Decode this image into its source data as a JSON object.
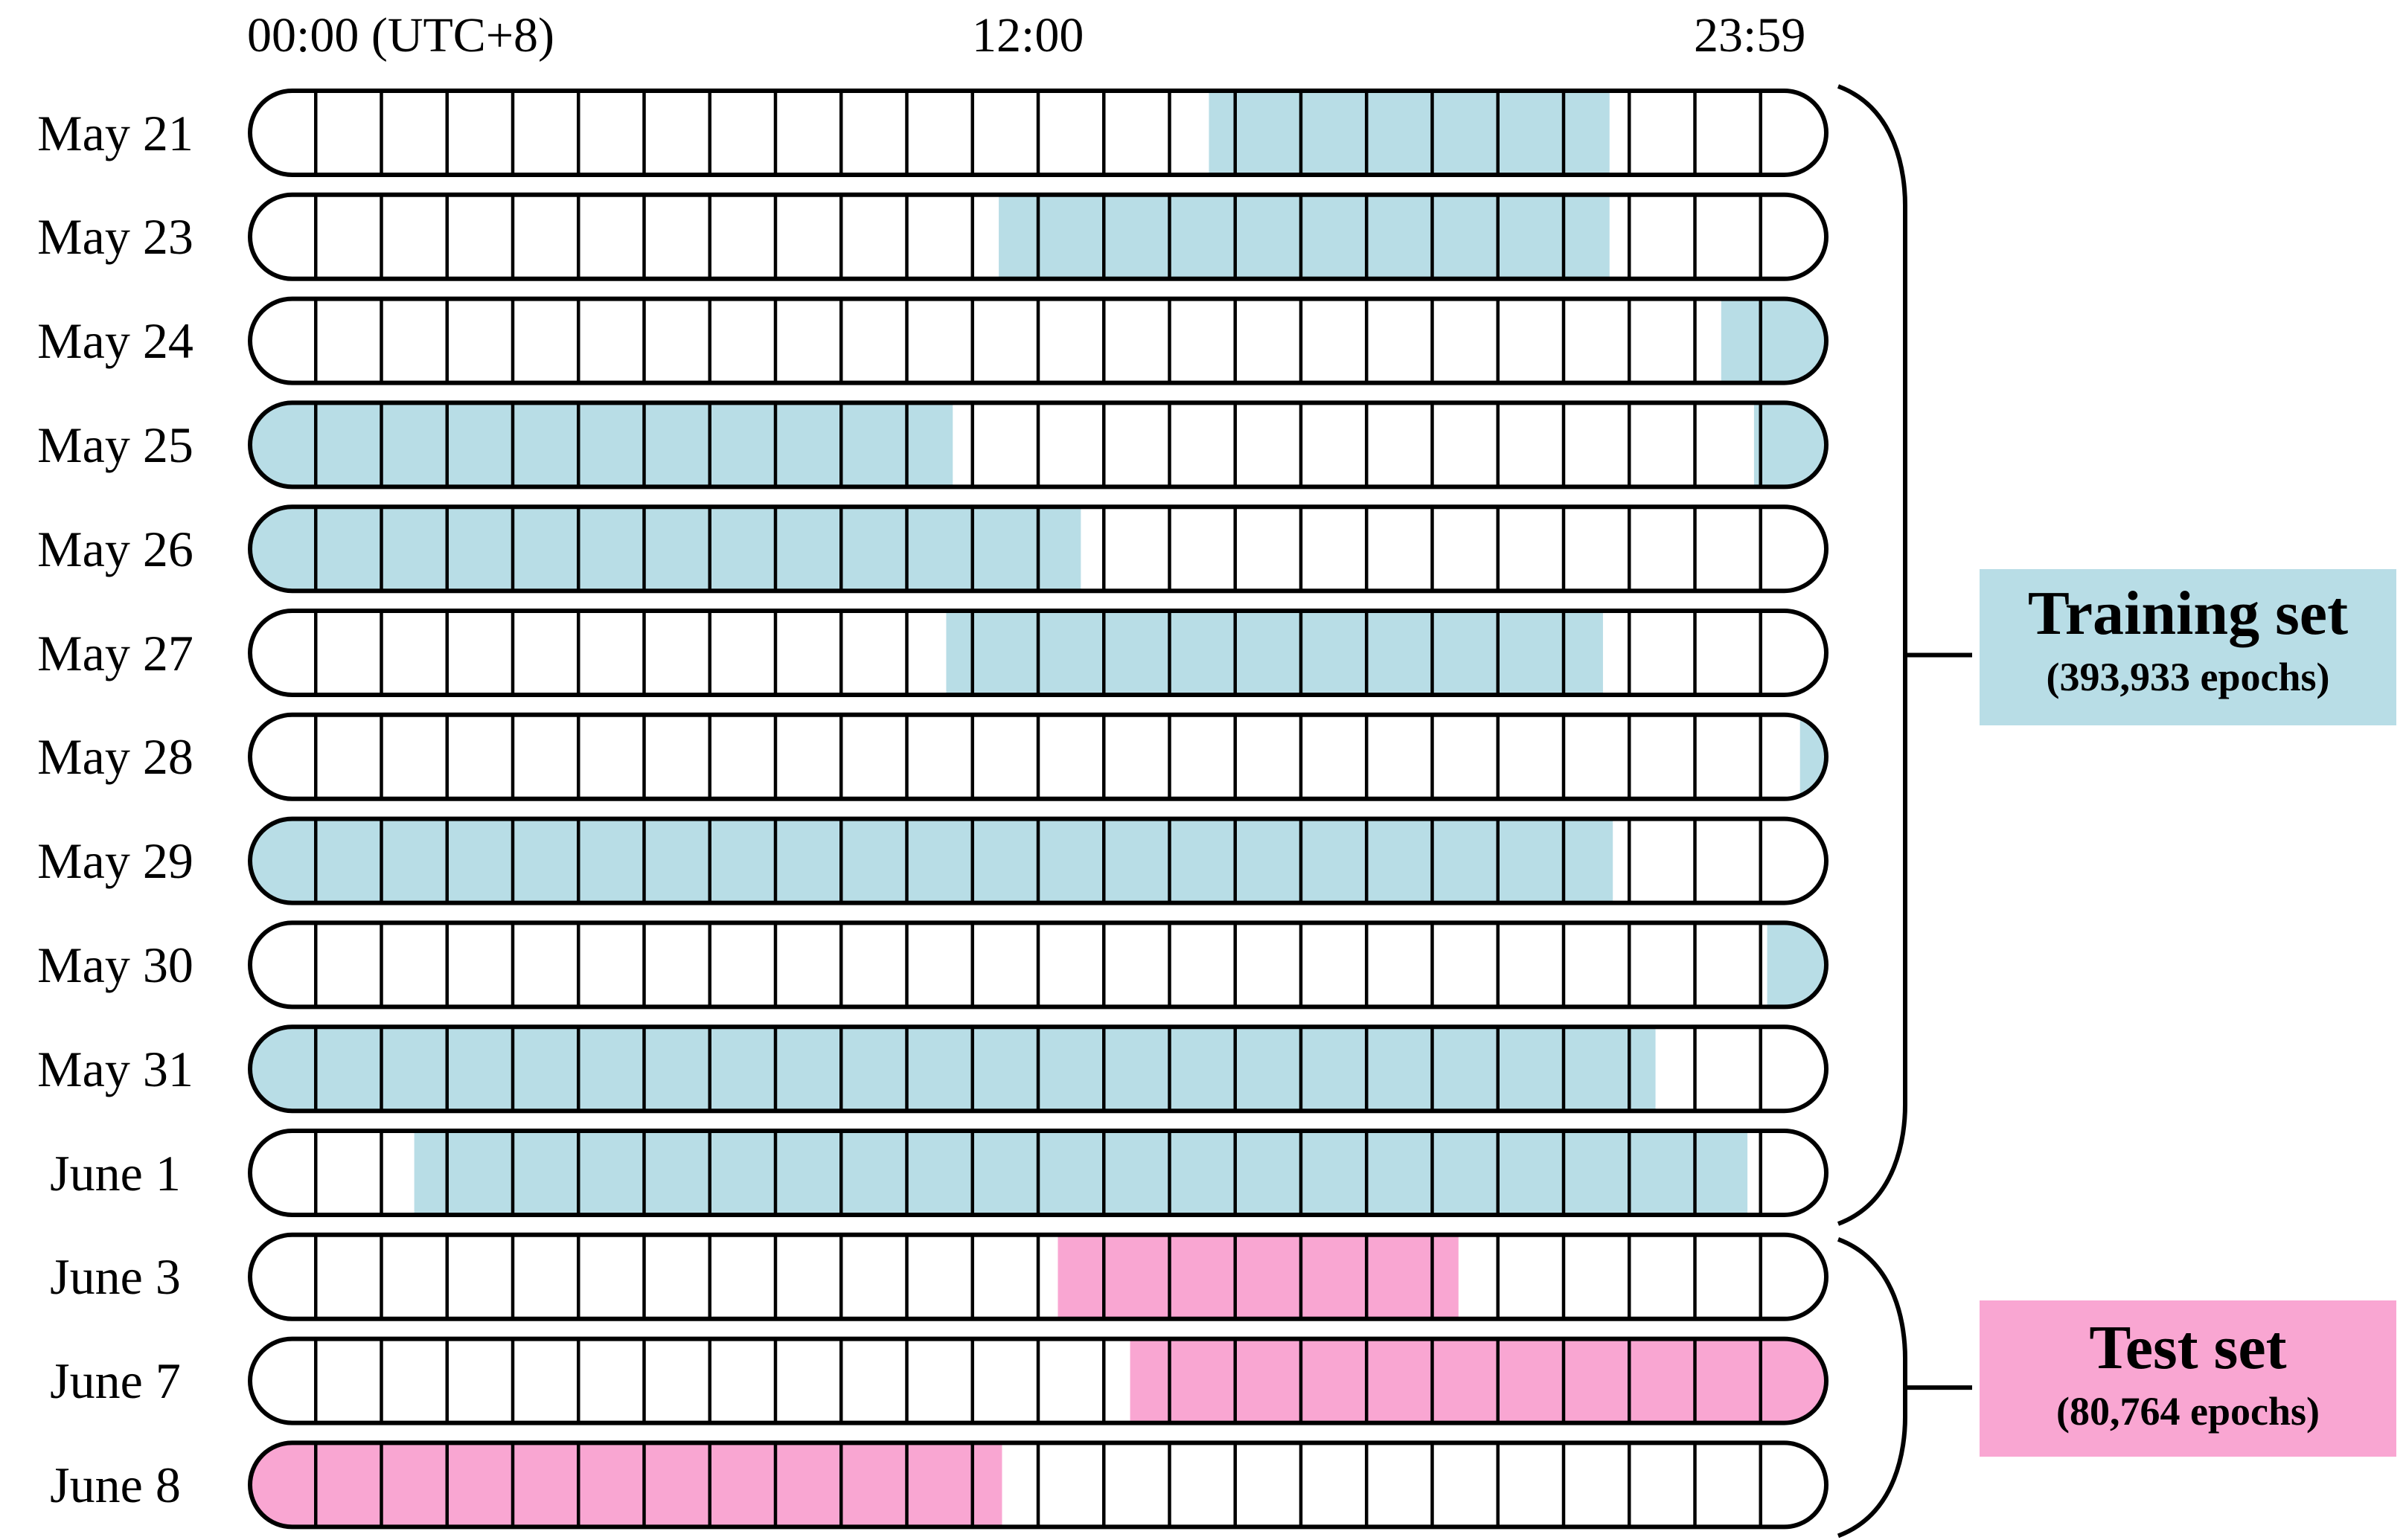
{
  "chart_data": {
    "type": "timeline",
    "x_axis": {
      "ticks": [
        "00:00 (UTC+8)",
        "12:00",
        "23:59"
      ],
      "range_hours": [
        0,
        24
      ],
      "cells_per_row": 24
    },
    "groups": [
      {
        "name": "Training set",
        "count_label": "(393,933 epochs)",
        "color": "#b8dde6"
      },
      {
        "name": "Test set",
        "count_label": "(80,764 epochs)",
        "color": "#f9a6d2"
      }
    ],
    "rows": [
      {
        "label": "May 21",
        "group": 0,
        "intervals": [
          [
            14.6,
            20.7
          ]
        ]
      },
      {
        "label": "May 23",
        "group": 0,
        "intervals": [
          [
            11.4,
            20.7
          ]
        ]
      },
      {
        "label": "May 24",
        "group": 0,
        "intervals": [
          [
            22.4,
            24.0
          ]
        ]
      },
      {
        "label": "May 25",
        "group": 0,
        "intervals": [
          [
            0.0,
            10.7
          ],
          [
            22.9,
            24.0
          ]
        ]
      },
      {
        "label": "May 26",
        "group": 0,
        "intervals": [
          [
            0.0,
            12.65
          ]
        ]
      },
      {
        "label": "May 27",
        "group": 0,
        "intervals": [
          [
            10.6,
            20.6
          ]
        ]
      },
      {
        "label": "May 28",
        "group": 0,
        "intervals": [
          [
            23.6,
            24.0
          ]
        ]
      },
      {
        "label": "May 29",
        "group": 0,
        "intervals": [
          [
            0.0,
            20.75
          ]
        ]
      },
      {
        "label": "May 30",
        "group": 0,
        "intervals": [
          [
            23.1,
            24.0
          ]
        ]
      },
      {
        "label": "May 31",
        "group": 0,
        "intervals": [
          [
            0.0,
            21.4
          ]
        ]
      },
      {
        "label": "June 1",
        "group": 0,
        "intervals": [
          [
            2.5,
            22.8
          ]
        ]
      },
      {
        "label": "June 3",
        "group": 1,
        "intervals": [
          [
            12.3,
            18.4
          ]
        ]
      },
      {
        "label": "June 7",
        "group": 1,
        "intervals": [
          [
            13.4,
            24.0
          ]
        ]
      },
      {
        "label": "June 8",
        "group": 1,
        "intervals": [
          [
            0.0,
            11.45
          ]
        ]
      }
    ]
  }
}
